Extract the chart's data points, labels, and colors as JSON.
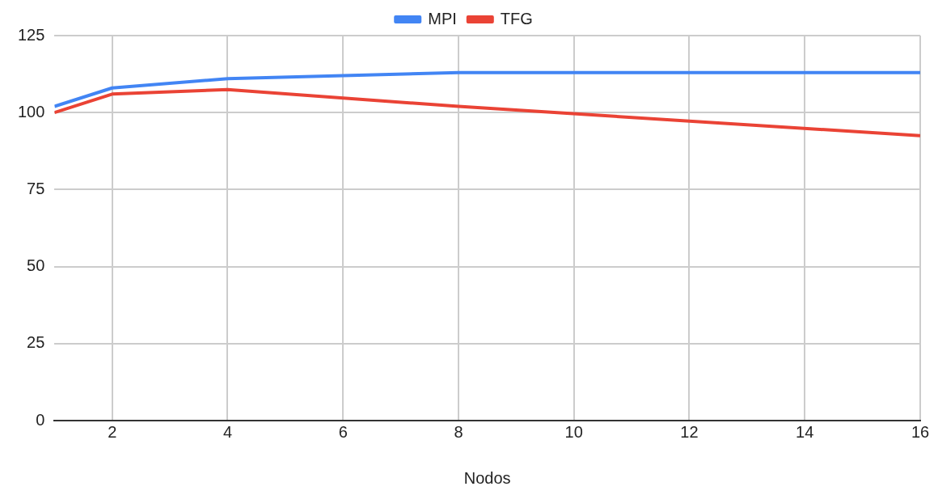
{
  "chart_data": {
    "type": "line",
    "xlabel": "Nodos",
    "x": [
      1,
      2,
      4,
      8,
      16
    ],
    "series": [
      {
        "name": "MPI",
        "color": "#4285f4",
        "values": [
          102,
          108,
          111,
          113,
          113
        ]
      },
      {
        "name": "TFG",
        "color": "#ea4335",
        "values": [
          100,
          106,
          107.5,
          102,
          92.5
        ]
      }
    ],
    "xlim": [
      1,
      16
    ],
    "xticks": [
      2,
      4,
      6,
      8,
      10,
      12,
      14,
      16
    ],
    "ylim": [
      0,
      125
    ],
    "yticks": [
      0,
      25,
      50,
      75,
      100,
      125
    ],
    "grid": true,
    "legend": "top",
    "marker": "none",
    "line_style": "solid"
  }
}
